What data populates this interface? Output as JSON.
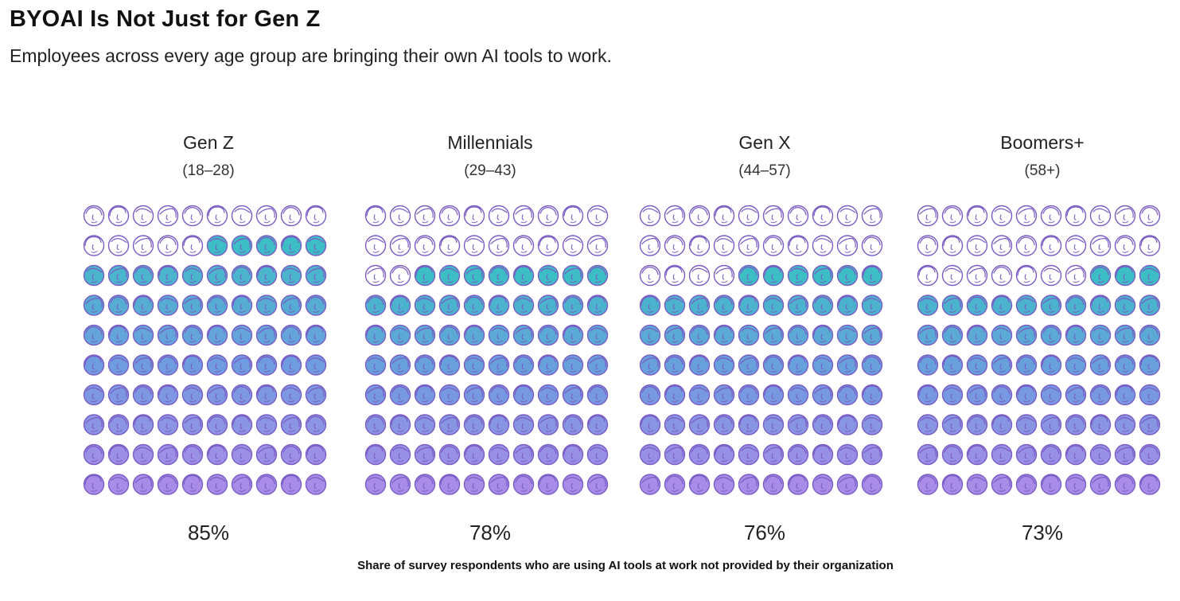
{
  "title": "BYOAI Is Not Just for Gen Z",
  "subtitle": "Employees across every age group are bringing their own AI tools to work.",
  "caption": "Share of survey respondents who are using AI tools at work not provided by their organization",
  "colors": {
    "outline": "#7a5cc4",
    "teal": "#3dbdc6",
    "blue": "#6f9be0",
    "violet": "#a98ce8",
    "empty": "#ffffff"
  },
  "icons": {
    "person": "face-icon"
  },
  "chart_data": {
    "type": "waffle",
    "title": "BYOAI Is Not Just for Gen Z",
    "subtitle": "Employees across every age group are bringing their own AI tools to work.",
    "unit": "percent",
    "grid": {
      "rows": 10,
      "cols": 10
    },
    "categories": [
      {
        "name": "Gen Z",
        "age": "(18–28)",
        "value": 85,
        "label": "85%"
      },
      {
        "name": "Millennials",
        "age": "(29–43)",
        "value": 78,
        "label": "78%"
      },
      {
        "name": "Gen X",
        "age": "(44–57)",
        "value": 76,
        "label": "76%"
      },
      {
        "name": "Boomers+",
        "age": "(58+)",
        "value": 73,
        "label": "73%"
      }
    ],
    "xlabel": "Share of survey respondents who are using AI tools at work not provided by their organization"
  }
}
